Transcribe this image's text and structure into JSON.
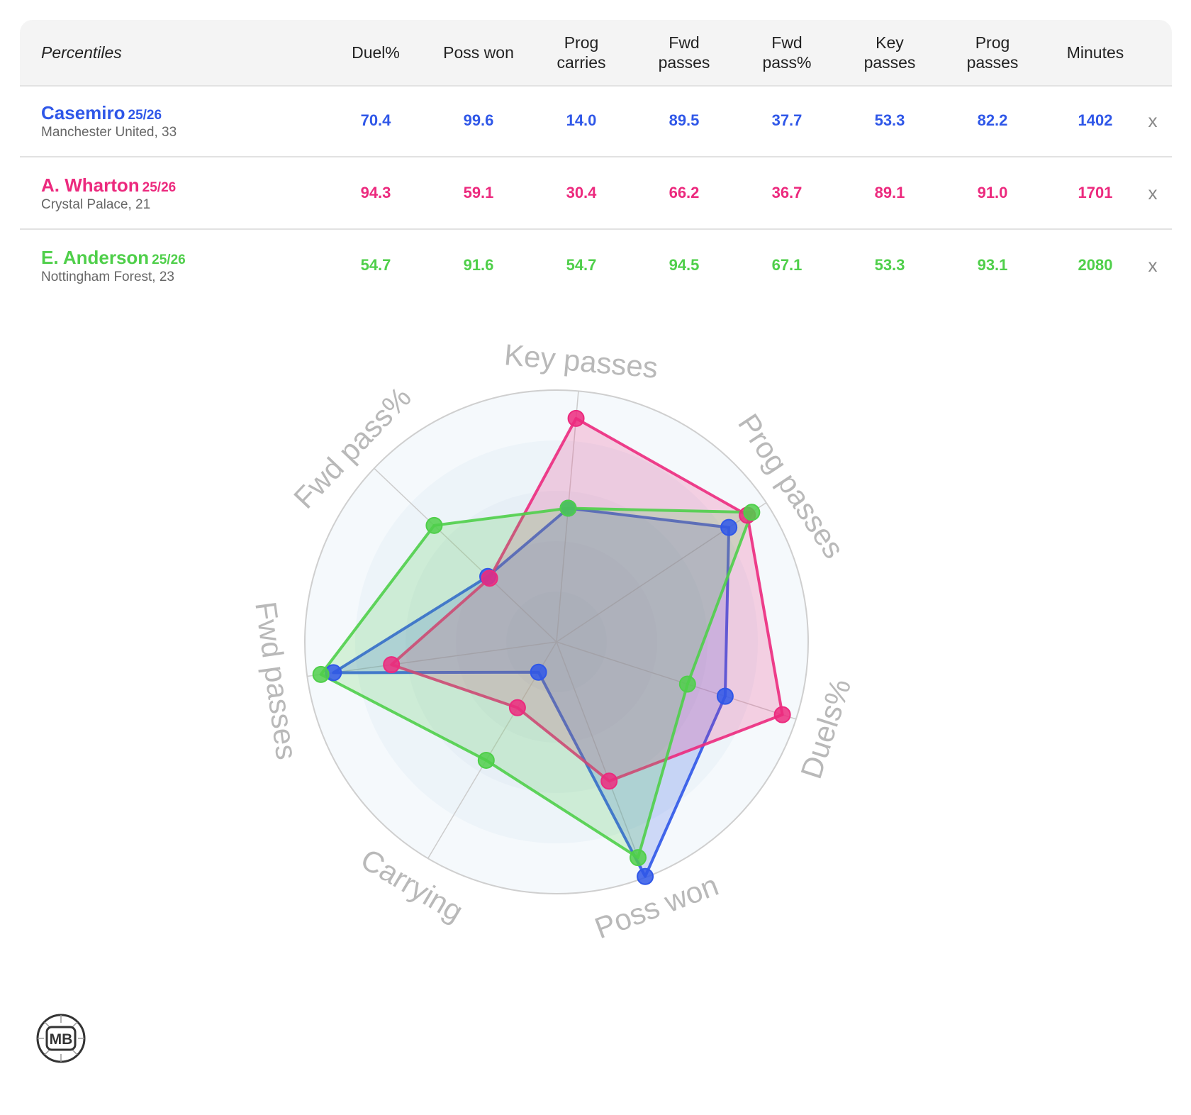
{
  "table": {
    "first_header": "Percentiles",
    "columns": [
      "Duel%",
      "Poss won",
      "Prog\ncarries",
      "Fwd\npasses",
      "Fwd\npass%",
      "Key\npasses",
      "Prog\npasses",
      "Minutes"
    ],
    "remove_label": "x",
    "players": [
      {
        "name": "Casemiro",
        "season": "25/26",
        "team": "Manchester United, 33",
        "color": "#2f57e8",
        "values": [
          "70.4",
          "99.6",
          "14.0",
          "89.5",
          "37.7",
          "53.3",
          "82.2",
          "1402"
        ]
      },
      {
        "name": "A. Wharton",
        "season": "25/26",
        "team": "Crystal Palace, 21",
        "color": "#ec2a7e",
        "values": [
          "94.3",
          "59.1",
          "30.4",
          "66.2",
          "36.7",
          "89.1",
          "91.0",
          "1701"
        ]
      },
      {
        "name": "E. Anderson",
        "season": "25/26",
        "team": "Nottingham Forest, 23",
        "color": "#4fcf4a",
        "values": [
          "54.7",
          "91.6",
          "54.7",
          "94.5",
          "67.1",
          "53.3",
          "93.1",
          "2080"
        ]
      }
    ]
  },
  "chart_data": {
    "type": "radar",
    "axes": [
      "Key passes",
      "Prog passes",
      "Duels%",
      "Poss won",
      "Carrying",
      "Fwd passes",
      "Fwd pass%"
    ],
    "range": [
      0,
      100
    ],
    "series": [
      {
        "name": "Casemiro",
        "color": "#2f57e8",
        "values": [
          53.3,
          82.2,
          70.4,
          99.6,
          14.0,
          89.5,
          37.7
        ]
      },
      {
        "name": "A. Wharton",
        "color": "#ec2a7e",
        "values": [
          89.1,
          91.0,
          94.3,
          59.1,
          30.4,
          66.2,
          36.7
        ]
      },
      {
        "name": "E. Anderson",
        "color": "#4fcf4a",
        "values": [
          53.3,
          93.1,
          54.7,
          91.6,
          54.7,
          94.5,
          67.1
        ]
      }
    ]
  },
  "logo": {
    "text": "MB"
  }
}
